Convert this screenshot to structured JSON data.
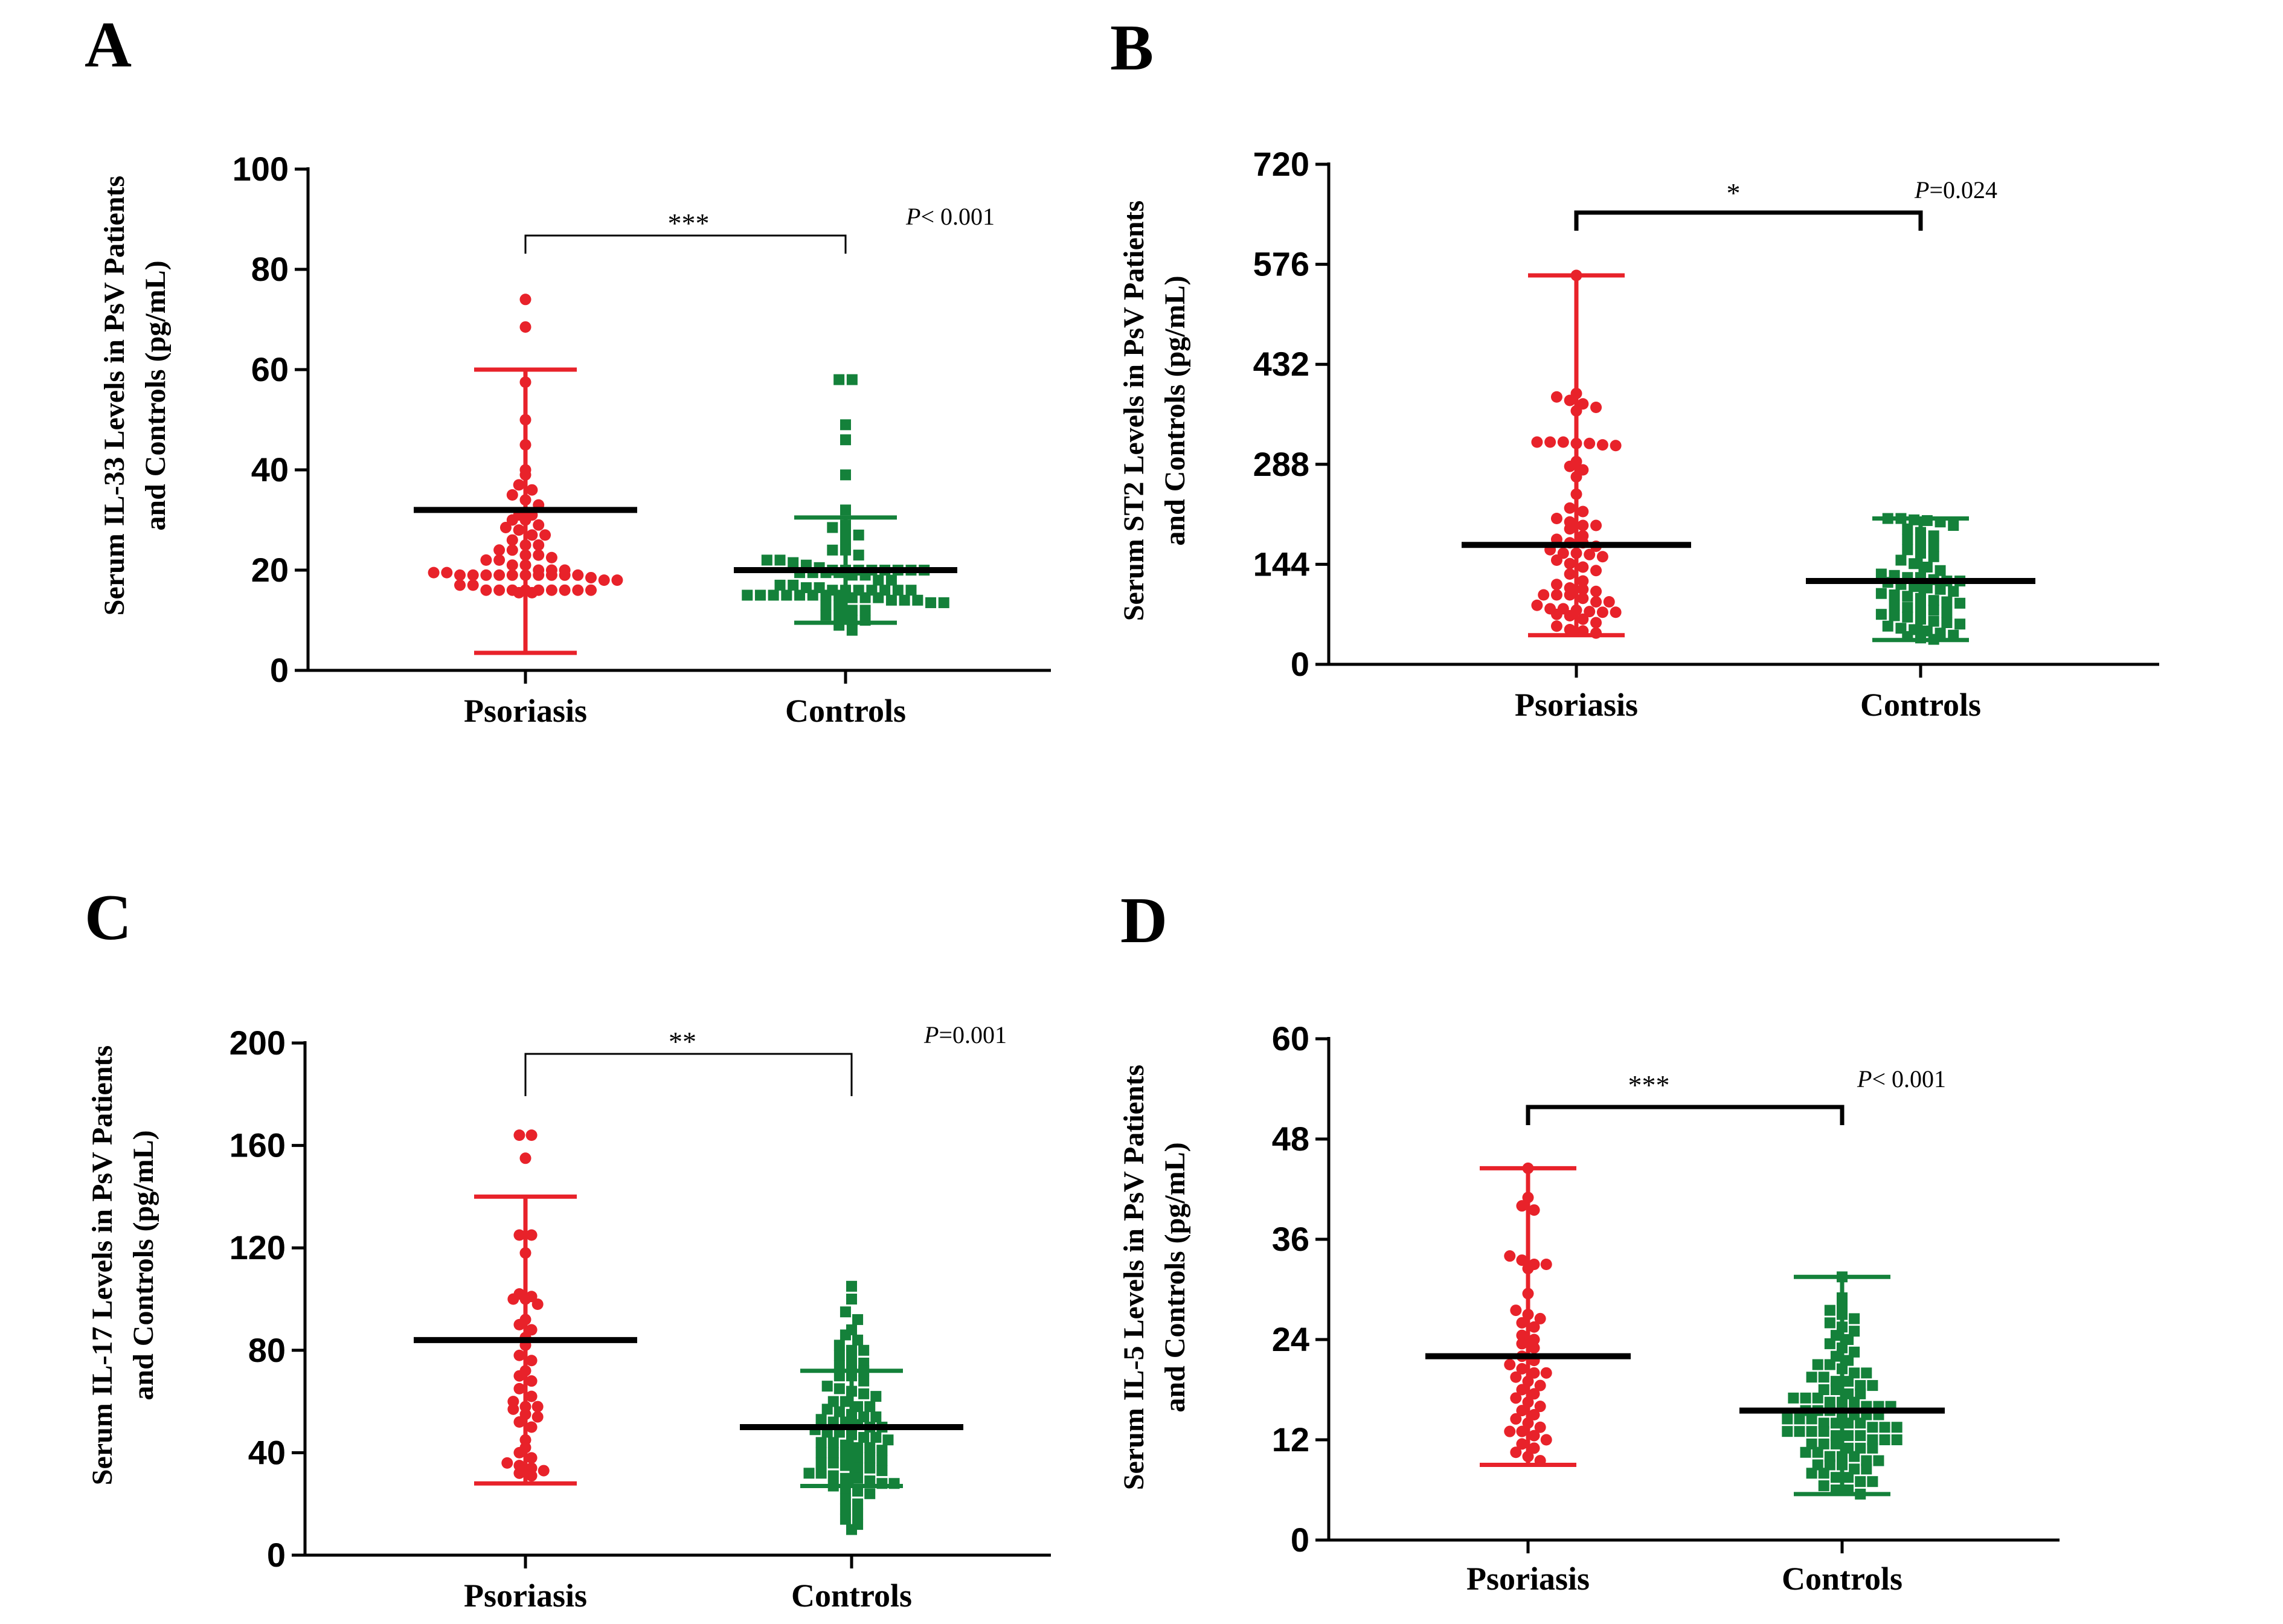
{
  "colors": {
    "psoriasis": "#e8222a",
    "controls": "#14813a",
    "mean_line": "#000000",
    "axis": "#000000"
  },
  "chart_data": [
    {
      "type": "scatter",
      "panel": "A",
      "ylabel_line1": "Serum IL-33 Levels in PsV Patients",
      "ylabel_line2": "and Controls (pg/mL)",
      "categories": [
        "Psoriasis",
        "Controls"
      ],
      "ylim": [
        0,
        100
      ],
      "yticks": [
        "0",
        "20",
        "40",
        "60",
        "80",
        "100"
      ],
      "significance": "***",
      "p_prefix": "P",
      "p_value": "< 0.001",
      "series": [
        {
          "name": "Psoriasis",
          "mean": 32,
          "sd_low": 3.5,
          "sd_high": 60,
          "values": [
            74,
            68.5,
            57.5,
            50,
            45,
            40,
            39,
            37,
            36,
            35,
            34,
            33,
            31,
            31,
            30,
            30,
            29,
            28.5,
            28,
            27,
            27,
            26,
            25,
            25,
            24,
            24,
            23,
            23,
            22.5,
            22,
            22,
            21,
            21,
            20,
            20,
            20,
            19.5,
            19.5,
            19,
            19,
            19,
            19,
            19,
            19,
            19,
            19,
            19,
            19,
            18.5,
            18,
            18,
            17,
            17,
            16,
            16,
            16,
            16,
            16,
            16,
            16,
            16,
            16,
            15.5,
            15.5
          ]
        },
        {
          "name": "Controls",
          "mean": 20,
          "sd_low": 9.5,
          "sd_high": 30.5,
          "values": [
            58,
            58,
            49,
            46,
            39,
            32,
            29,
            28.5,
            28,
            27,
            26,
            24,
            24,
            23,
            22,
            22,
            21.5,
            21,
            20.5,
            20,
            20,
            20,
            20,
            20,
            20,
            20,
            20,
            19.5,
            19.5,
            19.5,
            19.5,
            19,
            19,
            18,
            18,
            17,
            17,
            16.5,
            16.5,
            16,
            16,
            16,
            16,
            16,
            16,
            16,
            15,
            15,
            15,
            15,
            15,
            15,
            15,
            15,
            14.5,
            14.5,
            14.5,
            14,
            14,
            14,
            13.5,
            13.5,
            13,
            13,
            12,
            12,
            11,
            11,
            10,
            10,
            9,
            8
          ]
        }
      ]
    },
    {
      "type": "scatter",
      "panel": "B",
      "ylabel_line1": "Serum ST2 Levels in PsV Patients",
      "ylabel_line2": "and Controls (pg/mL)",
      "categories": [
        "Psoriasis",
        "Controls"
      ],
      "ylim": [
        0,
        720
      ],
      "yticks": [
        "0",
        "144",
        "288",
        "432",
        "576",
        "720"
      ],
      "significance": "*",
      "p_prefix": "P",
      "p_value": "=0.024",
      "series": [
        {
          "name": "Psoriasis",
          "mean": 172,
          "sd_low": 42,
          "sd_high": 560,
          "values": [
            560,
            390,
            385,
            380,
            375,
            370,
            365,
            320,
            320,
            320,
            318,
            318,
            316,
            315,
            292,
            285,
            280,
            270,
            245,
            225,
            220,
            210,
            205,
            200,
            200,
            195,
            185,
            180,
            175,
            175,
            170,
            165,
            160,
            160,
            158,
            155,
            150,
            145,
            140,
            135,
            130,
            120,
            115,
            110,
            108,
            105,
            100,
            100,
            100,
            95,
            90,
            90,
            85,
            80,
            80,
            78,
            76,
            75,
            75,
            72,
            70,
            65,
            60,
            55,
            50,
            48,
            45
          ]
        },
        {
          "name": "Controls",
          "mean": 120,
          "sd_low": 35,
          "sd_high": 210,
          "values": [
            210,
            210,
            208,
            207,
            205,
            200,
            195,
            190,
            185,
            180,
            175,
            170,
            165,
            160,
            155,
            150,
            145,
            140,
            135,
            130,
            128,
            125,
            125,
            122,
            120,
            120,
            118,
            115,
            112,
            110,
            108,
            105,
            102,
            100,
            98,
            95,
            92,
            90,
            88,
            85,
            82,
            80,
            78,
            75,
            72,
            70,
            68,
            65,
            62,
            60,
            58,
            55,
            52,
            50,
            48,
            45,
            42,
            40,
            38,
            36
          ]
        }
      ]
    },
    {
      "type": "scatter",
      "panel": "C",
      "ylabel_line1": "Serum IL-17 Levels in PsV Patients",
      "ylabel_line2": "and Controls (pg/mL)",
      "categories": [
        "Psoriasis",
        "Controls"
      ],
      "ylim": [
        0,
        200
      ],
      "yticks": [
        "0",
        "40",
        "80",
        "120",
        "160",
        "200"
      ],
      "significance": "**",
      "p_prefix": "P",
      "p_value": "=0.001",
      "series": [
        {
          "name": "Psoriasis",
          "mean": 84,
          "sd_low": 28,
          "sd_high": 140,
          "values": [
            164,
            164,
            155,
            125,
            125,
            118,
            102,
            101,
            100,
            100,
            98,
            92,
            90,
            88,
            85,
            82,
            78,
            76,
            72,
            70,
            68,
            65,
            62,
            60,
            58,
            58,
            57,
            55,
            54,
            52,
            50,
            45,
            42,
            40,
            38,
            36,
            35,
            34,
            33,
            32,
            31
          ]
        },
        {
          "name": "Controls",
          "mean": 50,
          "sd_low": 27,
          "sd_high": 72,
          "values": [
            105,
            100,
            95,
            92,
            88,
            86,
            84,
            82,
            80,
            80,
            78,
            76,
            75,
            74,
            72,
            72,
            70,
            70,
            68,
            66,
            65,
            64,
            63,
            62,
            60,
            60,
            58,
            58,
            57,
            56,
            55,
            54,
            54,
            53,
            52,
            52,
            51,
            50,
            50,
            49,
            48,
            48,
            47,
            46,
            46,
            45,
            44,
            44,
            43,
            42,
            42,
            41,
            40,
            40,
            39,
            38,
            38,
            37,
            36,
            36,
            35,
            34,
            34,
            33,
            32,
            32,
            31,
            30,
            30,
            29,
            28,
            28,
            27,
            26,
            25,
            24,
            22,
            20,
            18,
            16,
            14,
            12,
            10
          ]
        }
      ]
    },
    {
      "type": "scatter",
      "panel": "D",
      "ylabel_line1": "Serum IL-5 Levels in PsV Patients",
      "ylabel_line2": "and Controls (pg/mL)",
      "categories": [
        "Psoriasis",
        "Controls"
      ],
      "ylim": [
        0,
        60
      ],
      "yticks": [
        "0",
        "12",
        "24",
        "36",
        "48",
        "60"
      ],
      "significance": "***",
      "p_prefix": "P",
      "p_value": "< 0.001",
      "series": [
        {
          "name": "Psoriasis",
          "mean": 22,
          "sd_low": 9,
          "sd_high": 44.5,
          "values": [
            44.5,
            41,
            40,
            39.5,
            34,
            33.5,
            33,
            33,
            32.5,
            29.5,
            27.5,
            27,
            26.5,
            26,
            25.5,
            24.5,
            24,
            23.5,
            23,
            22,
            21.5,
            21,
            20.5,
            20,
            20,
            19.5,
            19,
            18.5,
            18,
            17.5,
            17,
            16.5,
            16,
            15.5,
            15,
            14.5,
            14,
            13.5,
            13,
            13,
            12.5,
            12,
            11.5,
            11,
            10.5,
            10,
            9.5
          ]
        },
        {
          "name": "Controls",
          "mean": 15.5,
          "sd_low": 5.5,
          "sd_high": 31.5,
          "values": [
            31.5,
            29,
            28,
            27.5,
            27,
            26.5,
            26,
            25.5,
            25,
            24.5,
            24,
            23.5,
            23,
            22.5,
            22,
            21.5,
            21,
            21,
            20.5,
            20,
            20,
            19.5,
            19.5,
            19,
            19,
            18.5,
            18.5,
            18,
            18,
            17.5,
            17.5,
            17,
            17,
            17,
            16.5,
            16.5,
            16.5,
            16,
            16,
            16,
            15.5,
            15.5,
            15.5,
            15,
            15,
            15,
            15,
            14.5,
            14.5,
            14.5,
            14,
            14,
            14,
            14,
            13.5,
            13.5,
            13.5,
            13,
            13,
            13,
            13,
            12.5,
            12.5,
            12.5,
            12,
            12,
            12,
            11.5,
            11.5,
            11.5,
            11,
            11,
            11,
            10.5,
            10.5,
            10,
            10,
            10,
            9.5,
            9.5,
            9,
            9,
            9,
            8.5,
            8.5,
            8,
            8,
            7.5,
            7.5,
            7,
            7,
            6.5,
            6,
            6,
            5.5
          ]
        }
      ]
    }
  ]
}
